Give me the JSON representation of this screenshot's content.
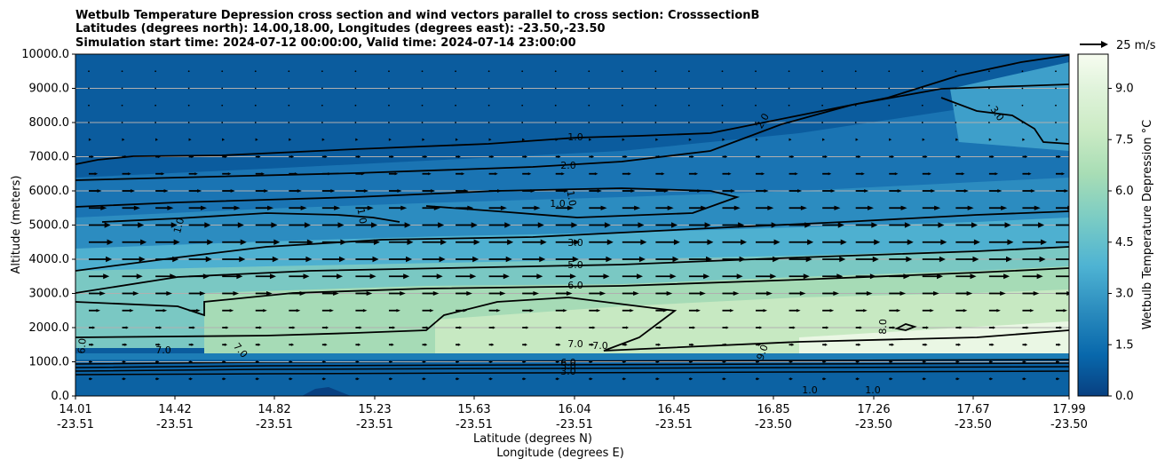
{
  "chart_data": {
    "type": "contour",
    "title_lines": [
      "Wetbulb Temperature Depression cross section and wind vectors parallel to cross section: CrosssectionB",
      "Latitudes (degrees north): 14.00,18.00, Longitudes (degrees east): -23.50,-23.50",
      "Simulation start time: 2024-07-12 00:00:00, Valid time: 2024-07-14 23:00:00"
    ],
    "ylabel": "Altitude (meters)",
    "xlabel_lat": "Latitude (degrees N)",
    "xlabel_lon": "Longitude (degrees E)",
    "ylim": [
      0,
      10000
    ],
    "y_ticks": [
      "0.0",
      "1000.0",
      "2000.0",
      "3000.0",
      "4000.0",
      "5000.0",
      "6000.0",
      "7000.0",
      "8000.0",
      "9000.0",
      "10000.0"
    ],
    "x_ticks": [
      {
        "lat": "14.01",
        "lon": "-23.51"
      },
      {
        "lat": "14.42",
        "lon": "-23.51"
      },
      {
        "lat": "14.82",
        "lon": "-23.51"
      },
      {
        "lat": "15.23",
        "lon": "-23.51"
      },
      {
        "lat": "15.63",
        "lon": "-23.51"
      },
      {
        "lat": "16.04",
        "lon": "-23.51"
      },
      {
        "lat": "16.45",
        "lon": "-23.51"
      },
      {
        "lat": "16.85",
        "lon": "-23.50"
      },
      {
        "lat": "17.26",
        "lon": "-23.50"
      },
      {
        "lat": "17.67",
        "lon": "-23.50"
      },
      {
        "lat": "17.99",
        "lon": "-23.50"
      }
    ],
    "colorbar": {
      "label": "Wetbulb Temperature Depression °C",
      "ticks": [
        "0.0",
        "1.5",
        "3.0",
        "4.5",
        "6.0",
        "7.5",
        "9.0"
      ],
      "range": [
        0,
        10
      ]
    },
    "quiver_key": "25 m/s",
    "contour_labels": [
      "1.0",
      "2.0",
      "1.0",
      "1.0",
      "3.0",
      "5.0",
      "6.0",
      "7.0",
      "7.0",
      "7.0",
      "6.0",
      "5.0",
      "3.0",
      "8.0",
      "9.0",
      "2.0",
      "3.0",
      "1.0",
      "1.0",
      "6.0",
      "7.0",
      "1.0",
      "1.0"
    ],
    "wind_profile": [
      {
        "altitude": 500,
        "speed": 3
      },
      {
        "altitude": 1000,
        "speed": 3
      },
      {
        "altitude": 1500,
        "speed": 4
      },
      {
        "altitude": 2000,
        "speed": 5
      },
      {
        "altitude": 2500,
        "speed": 9
      },
      {
        "altitude": 3000,
        "speed": 13
      },
      {
        "altitude": 3500,
        "speed": 16
      },
      {
        "altitude": 4000,
        "speed": 18
      },
      {
        "altitude": 4500,
        "speed": 19
      },
      {
        "altitude": 5000,
        "speed": 17
      },
      {
        "altitude": 5500,
        "speed": 14
      },
      {
        "altitude": 6000,
        "speed": 10
      },
      {
        "altitude": 6500,
        "speed": 7
      },
      {
        "altitude": 7000,
        "speed": 4
      },
      {
        "altitude": 7500,
        "speed": 2
      },
      {
        "altitude": 8000,
        "speed": 1
      },
      {
        "altitude": 8500,
        "speed": 0.5
      },
      {
        "altitude": 9000,
        "speed": 0.5
      },
      {
        "altitude": 9500,
        "speed": 0.3
      }
    ]
  }
}
